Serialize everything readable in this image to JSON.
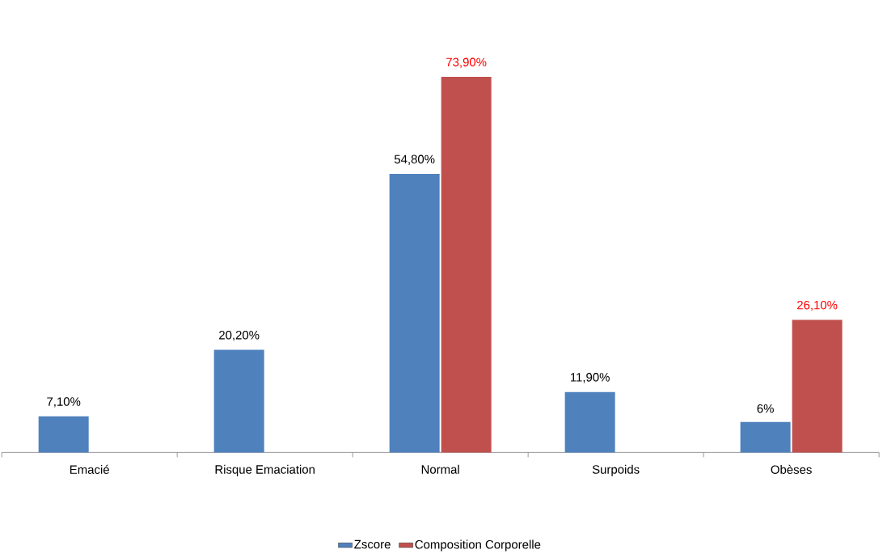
{
  "chart_data": {
    "type": "bar",
    "categories": [
      "Emacié",
      "Risque Emaciation",
      "Normal",
      "Surpoids",
      "Obèses"
    ],
    "series": [
      {
        "name": "Zscore",
        "color": "#4f81bd",
        "values": [
          7.1,
          20.2,
          54.8,
          11.9,
          6
        ],
        "value_labels": [
          "7,10%",
          "20,20%",
          "54,80%",
          "11,90%",
          "6%"
        ]
      },
      {
        "name": "Composition Corporelle",
        "color": "#c0504d",
        "values": [
          null,
          null,
          73.9,
          null,
          26.1
        ],
        "value_labels": [
          null,
          null,
          "73,90%",
          null,
          "26,10%"
        ]
      }
    ],
    "legend": "bottom",
    "grid": false
  }
}
